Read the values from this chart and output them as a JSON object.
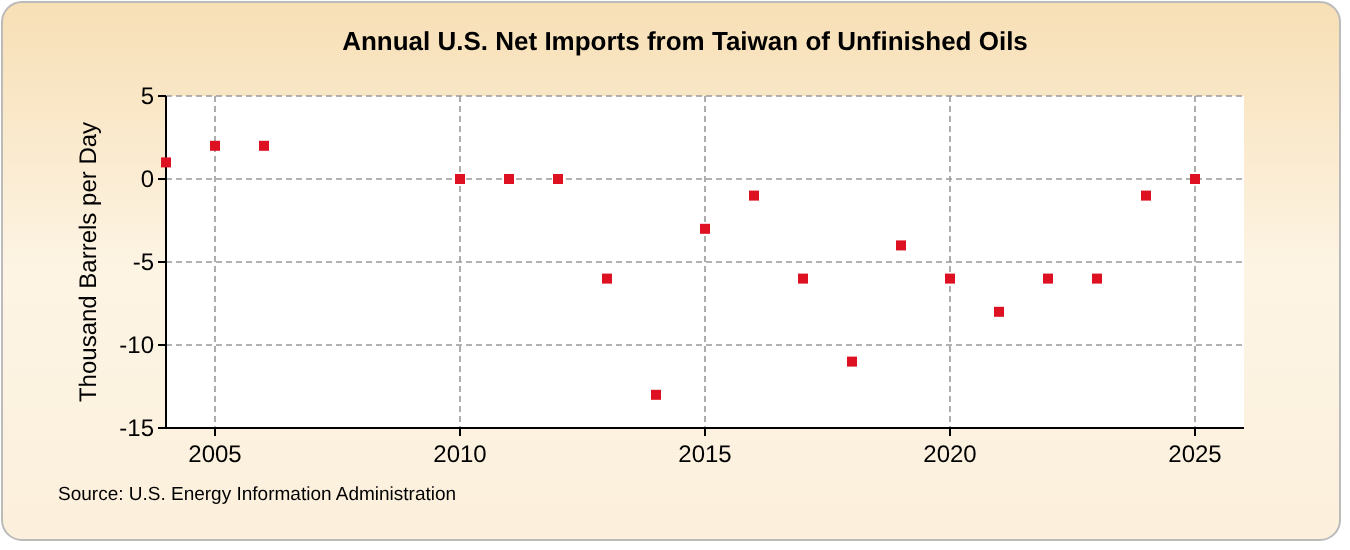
{
  "chart_data": {
    "type": "scatter",
    "title": "Annual U.S. Net Imports from Taiwan of Unfinished Oils",
    "ylabel": "Thousand Barrels per Day",
    "x": [
      2004,
      2005,
      2006,
      2010,
      2011,
      2012,
      2013,
      2014,
      2015,
      2016,
      2017,
      2018,
      2019,
      2020,
      2021,
      2022,
      2023,
      2024,
      2025
    ],
    "series": [
      {
        "color": "#dd1122",
        "values": [
          1,
          2,
          2,
          0,
          0,
          0,
          -6,
          -13,
          -3,
          -1,
          -6,
          -11,
          -4,
          -6,
          -8,
          -6,
          -6,
          -1,
          0
        ]
      }
    ],
    "xlim": [
      2004,
      2026
    ],
    "xticks": [
      2005,
      2010,
      2015,
      2020,
      2025
    ],
    "ylim": [
      -15,
      5
    ],
    "yticks": [
      -15,
      -10,
      -5,
      0,
      5
    ],
    "grid": true,
    "marker": "square",
    "annotations": [
      "Source: U.S. Energy Information Administration"
    ]
  }
}
